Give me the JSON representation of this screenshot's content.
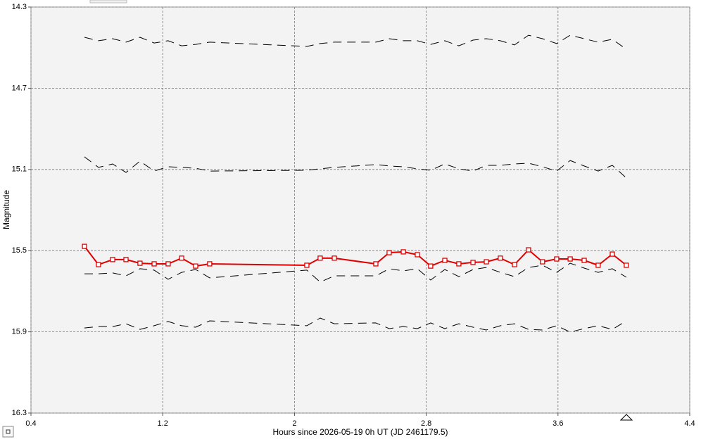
{
  "chart_data": {
    "type": "line",
    "x_label": "Hours since 2026-05-19 0h UT (JD 2461179.5)",
    "y_label": "Magnitude",
    "x": [
      0.725,
      0.81,
      0.896,
      0.977,
      1.062,
      1.148,
      1.233,
      1.315,
      1.4,
      1.485,
      2.075,
      2.156,
      2.242,
      2.494,
      2.575,
      2.661,
      2.746,
      2.827,
      2.913,
      2.998,
      3.084,
      3.165,
      3.25,
      3.336,
      3.421,
      3.506,
      3.592,
      3.674,
      3.759,
      3.844,
      3.93,
      4.015
    ],
    "series": [
      {
        "color": "#e00000",
        "style": "solid",
        "marker": "square",
        "values": [
          15.479,
          15.569,
          15.544,
          15.544,
          15.562,
          15.565,
          15.565,
          15.537,
          15.576,
          15.565,
          15.572,
          15.537,
          15.537,
          15.565,
          15.51,
          15.506,
          15.52,
          15.576,
          15.548,
          15.565,
          15.558,
          15.555,
          15.537,
          15.569,
          15.496,
          15.555,
          15.541,
          15.541,
          15.548,
          15.572,
          15.517,
          15.572
        ]
      },
      {
        "color": "#000000",
        "style": "dashed",
        "values": [
          14.449,
          14.466,
          14.456,
          14.473,
          14.449,
          14.477,
          14.466,
          14.491,
          14.484,
          14.473,
          14.494,
          14.48,
          14.473,
          14.473,
          14.456,
          14.466,
          14.466,
          14.484,
          14.466,
          14.491,
          14.463,
          14.456,
          14.466,
          14.487,
          14.439,
          14.456,
          14.48,
          14.439,
          14.456,
          14.473,
          14.459,
          14.508
        ]
      },
      {
        "color": "#000000",
        "style": "dashed",
        "values": [
          15.038,
          15.09,
          15.073,
          15.115,
          15.059,
          15.108,
          15.087,
          15.09,
          15.094,
          15.108,
          15.104,
          15.097,
          15.09,
          15.076,
          15.083,
          15.087,
          15.097,
          15.104,
          15.073,
          15.097,
          15.108,
          15.08,
          15.08,
          15.073,
          15.069,
          15.087,
          15.108,
          15.056,
          15.083,
          15.108,
          15.08,
          15.142
        ]
      },
      {
        "color": "#000000",
        "style": "dashed",
        "values": [
          15.614,
          15.614,
          15.61,
          15.624,
          15.589,
          15.596,
          15.641,
          15.607,
          15.593,
          15.634,
          15.596,
          15.655,
          15.624,
          15.624,
          15.589,
          15.6,
          15.589,
          15.645,
          15.593,
          15.628,
          15.593,
          15.583,
          15.607,
          15.628,
          15.583,
          15.572,
          15.607,
          15.562,
          15.586,
          15.607,
          15.589,
          15.631
        ]
      },
      {
        "color": "#000000",
        "style": "dashed",
        "values": [
          15.881,
          15.874,
          15.874,
          15.86,
          15.888,
          15.87,
          15.849,
          15.87,
          15.877,
          15.846,
          15.87,
          15.832,
          15.86,
          15.856,
          15.884,
          15.874,
          15.884,
          15.856,
          15.884,
          15.86,
          15.877,
          15.891,
          15.87,
          15.86,
          15.888,
          15.891,
          15.87,
          15.901,
          15.884,
          15.87,
          15.888,
          15.846
        ]
      }
    ],
    "xlim": [
      0.4,
      4.4
    ],
    "xticks": [
      0.4,
      1.2,
      2,
      2.8,
      3.6,
      4.4
    ],
    "ylim": [
      14.3,
      16.3
    ],
    "yticks": [
      14.3,
      14.7,
      15.1,
      15.5,
      15.9,
      16.3
    ],
    "y_reversed": true,
    "grid": true
  }
}
